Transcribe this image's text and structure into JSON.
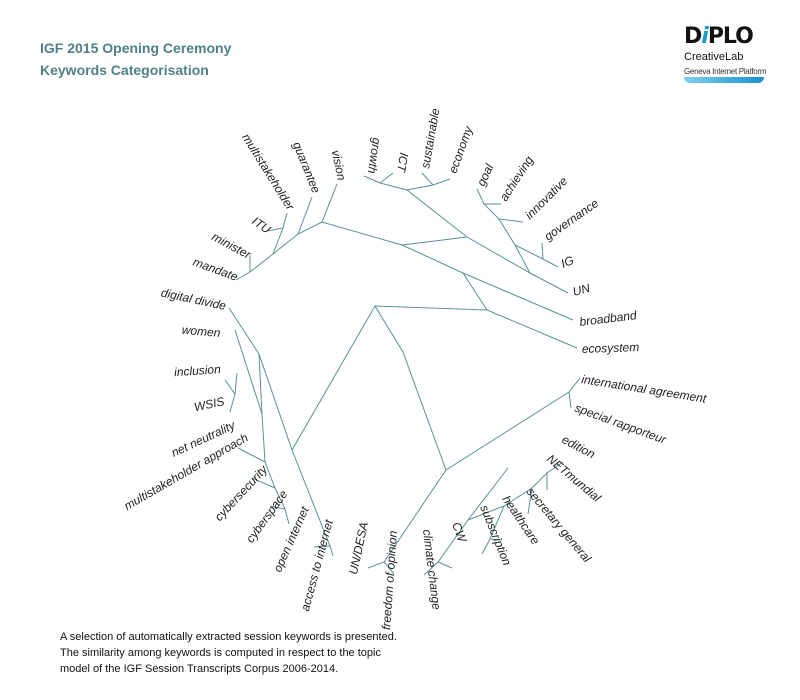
{
  "header": {
    "title_line1": "IGF 2015 Opening Ceremony",
    "title_line2": "Keywords Categorisation"
  },
  "logo": {
    "brand_pre": "D",
    "brand_i": "i",
    "brand_post": "PLO",
    "sub": "CreativeLab",
    "platform": "Geneva Internet Platform"
  },
  "colors": {
    "title": "#4f8088",
    "edge": "#5b9098",
    "logo_accent": "#1aa0c8"
  },
  "keywords": {
    "mandate": "mandate",
    "minister": "minister",
    "itu": "ITU",
    "multistakeholder": "multistakeholder",
    "guarantee": "guarantee",
    "vision": "vision",
    "growth": "growth",
    "ict": "ICT",
    "sustainable": "sustainable",
    "economy": "economy",
    "goal": "goal",
    "achieving": "achieving",
    "innovative": "innovative",
    "governance": "governance",
    "ig": "IG",
    "un": "UN",
    "broadband": "broadband",
    "ecosystem": "ecosystem",
    "international_agreement": "international agreement",
    "special_rapporteur": "special rapporteur",
    "edition": "edition",
    "netmundial": "NETmundial",
    "secretary_general": "secretary general",
    "healthcare": "healthcare",
    "subscription": "subscription",
    "cw": "CW",
    "climate_change": "climate change",
    "freedom_of_opinion": "freedom of opinion",
    "un_desa": "UN/DESA",
    "access_to_internet": "access to internet",
    "open_internet": "open internet",
    "cyberspace": "cyberspace",
    "cybersecurity": "cybersecurity",
    "multistakeholder_approach": "multistakeholder approach",
    "net_neutrality": "net neutrality",
    "wsis": "WSIS",
    "inclusion": "inclusion",
    "women": "women",
    "digital_divide": "digital divide"
  },
  "footer": {
    "line1": "A selection of automatically extracted session keywords is presented.",
    "line2": "The similarity among keywords is computed in respect to the topic",
    "line3": "model of the IGF Session Transcripts Corpus 2006-2014."
  }
}
